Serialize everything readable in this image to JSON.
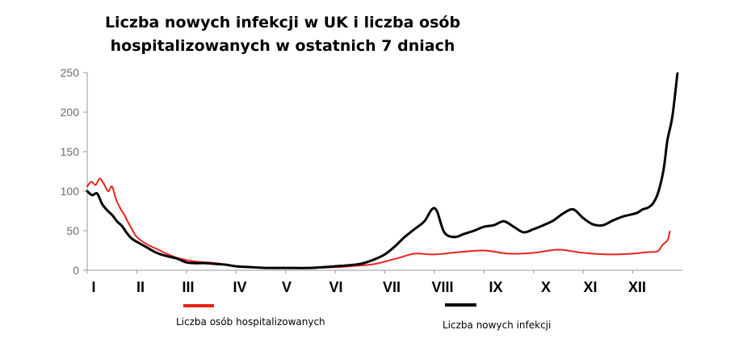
{
  "chart_data": {
    "type": "line",
    "title_line1": "Liczba nowych infekcji w UK i liczba osób",
    "title_line2": "hospitalizowanych w ostatnich 7 dniach",
    "categories": [
      "I",
      "II",
      "III",
      "IV",
      "V",
      "VI",
      "VII",
      "VIII",
      "IX",
      "X",
      "XI",
      "XII"
    ],
    "ylim": [
      0,
      250
    ],
    "yticks": [
      "0",
      "50",
      "100",
      "150",
      "200",
      "250"
    ],
    "grid": false,
    "legend_position": "bottom",
    "series": [
      {
        "name": "Liczba osób hospitalizowanych",
        "color": "#e8211a",
        "x": [
          0,
          0.08,
          0.17,
          0.25,
          0.33,
          0.42,
          0.5,
          0.58,
          0.67,
          0.75,
          0.83,
          0.92,
          1.0,
          1.2,
          1.4,
          1.6,
          1.8,
          2.0,
          2.2,
          2.4,
          2.6,
          2.8,
          3.0,
          3.3,
          3.6,
          4.0,
          4.5,
          5.0,
          5.5,
          5.8,
          6.0,
          6.3,
          6.6,
          7.0,
          7.5,
          8.0,
          8.5,
          9.0,
          9.5,
          10.0,
          10.5,
          11.0,
          11.3,
          11.5,
          11.6,
          11.7,
          11.75
        ],
        "values": [
          106,
          112,
          108,
          116,
          110,
          100,
          106,
          90,
          78,
          70,
          60,
          50,
          42,
          33,
          27,
          21,
          16,
          13,
          11,
          10,
          9,
          7,
          5,
          4,
          3,
          3,
          3,
          4,
          6,
          8,
          11,
          16,
          21,
          20,
          23,
          25,
          21,
          22,
          26,
          22,
          20,
          21,
          23,
          24,
          32,
          38,
          49
        ]
      },
      {
        "name": "Liczba nowych infekcji",
        "color": "#000000",
        "x": [
          0,
          0.1,
          0.2,
          0.3,
          0.4,
          0.5,
          0.6,
          0.7,
          0.8,
          0.9,
          1.0,
          1.2,
          1.4,
          1.6,
          1.8,
          2.0,
          2.2,
          2.4,
          2.6,
          2.8,
          3.0,
          3.3,
          3.6,
          4.0,
          4.5,
          5.0,
          5.5,
          5.8,
          6.0,
          6.2,
          6.4,
          6.6,
          6.8,
          6.95,
          7.05,
          7.2,
          7.4,
          7.6,
          7.8,
          8.0,
          8.2,
          8.4,
          8.6,
          8.8,
          9.0,
          9.2,
          9.4,
          9.6,
          9.8,
          10.0,
          10.2,
          10.4,
          10.6,
          10.8,
          11.0,
          11.1,
          11.2,
          11.3,
          11.4,
          11.5,
          11.6,
          11.65,
          11.7,
          11.8,
          11.9
        ],
        "values": [
          100,
          95,
          97,
          84,
          76,
          70,
          62,
          56,
          47,
          40,
          36,
          29,
          22,
          18,
          15,
          10,
          9,
          9,
          8,
          7,
          5,
          4,
          3,
          3,
          3,
          5,
          8,
          14,
          20,
          30,
          42,
          52,
          62,
          77,
          75,
          48,
          42,
          46,
          50,
          55,
          57,
          62,
          55,
          48,
          52,
          57,
          63,
          72,
          77,
          66,
          58,
          57,
          63,
          68,
          71,
          73,
          77,
          79,
          84,
          96,
          120,
          140,
          165,
          195,
          249
        ]
      }
    ]
  }
}
